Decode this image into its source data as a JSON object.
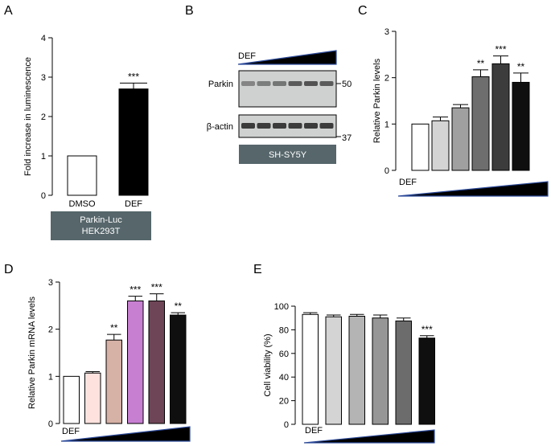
{
  "panels": {
    "A": "A",
    "B": "B",
    "C": "C",
    "D": "D",
    "E": "E"
  },
  "colors": {
    "label_box": "#56666b",
    "ramp_fill": "#000000",
    "ramp_edge": "#2c4a9a",
    "blot_bg": "#cfd0d0",
    "band": "#2a2a2a"
  },
  "blot": {
    "treatment": "DEF",
    "row1_label": "Parkin",
    "row1_marker": "50",
    "row2_label": "β-actin",
    "row2_marker": "37",
    "cell_line": "SH-SY5Y"
  },
  "chart_data": [
    {
      "id": "A",
      "type": "bar",
      "categories": [
        "DMSO",
        "DEF"
      ],
      "values": [
        1.0,
        2.7
      ],
      "errors": [
        0,
        0.15
      ],
      "significance": [
        "",
        "***"
      ],
      "fills": [
        "#ffffff",
        "#000000"
      ],
      "ylabel": "Fold increase in luminescence",
      "ylim": [
        0,
        4
      ],
      "yticks": [
        "0",
        "1",
        "2",
        "3",
        "4"
      ],
      "subtitle_lines": [
        "Parkin-Luc",
        "HEK293T"
      ],
      "grid": false
    },
    {
      "id": "C",
      "type": "bar",
      "categories": [
        "",
        "",
        "",
        "",
        "",
        ""
      ],
      "values": [
        1.0,
        1.07,
        1.35,
        2.02,
        2.3,
        1.9
      ],
      "errors": [
        0,
        0.08,
        0.07,
        0.15,
        0.17,
        0.2
      ],
      "significance": [
        "",
        "",
        "",
        "**",
        "***",
        "**"
      ],
      "fills": [
        "#ffffff",
        "#d4d4d4",
        "#a0a0a0",
        "#6e6e6e",
        "#3c3c3c",
        "#0f0f0f"
      ],
      "ylabel": "Relative Parkin levels",
      "ylim": [
        0,
        3
      ],
      "yticks": [
        "0",
        "1",
        "2",
        "3"
      ],
      "treatment": "DEF",
      "grid": false
    },
    {
      "id": "D",
      "type": "bar",
      "categories": [
        "",
        "",
        "",
        "",
        "",
        ""
      ],
      "values": [
        1.0,
        1.07,
        1.77,
        2.6,
        2.6,
        2.3
      ],
      "errors": [
        0,
        0.03,
        0.12,
        0.1,
        0.15,
        0.05
      ],
      "significance": [
        "",
        "",
        "**",
        "***",
        "***",
        "**"
      ],
      "fills": [
        "#ffffff",
        "#fde2de",
        "#d6b1a6",
        "#c77fd1",
        "#6e4556",
        "#0f0f0f"
      ],
      "ylabel": "Relative Parkin mRNA levels",
      "ylim": [
        0,
        3
      ],
      "yticks": [
        "0",
        "1",
        "2",
        "3"
      ],
      "treatment": "DEF",
      "grid": false
    },
    {
      "id": "E",
      "type": "bar",
      "categories": [
        "",
        "",
        "",
        "",
        "",
        ""
      ],
      "values": [
        93,
        91,
        91.5,
        90,
        87.5,
        73
      ],
      "errors": [
        1.5,
        1.5,
        1.5,
        2.5,
        2.5,
        2
      ],
      "significance": [
        "",
        "",
        "",
        "",
        "",
        "***"
      ],
      "fills": [
        "#ffffff",
        "#d4d4d4",
        "#b4b4b4",
        "#969696",
        "#6c6c6c",
        "#0f0f0f"
      ],
      "ylabel": "Cell viability (%)",
      "ylim": [
        0,
        100
      ],
      "yticks": [
        "0",
        "20",
        "40",
        "60",
        "80",
        "100"
      ],
      "treatment": "DEF",
      "grid": false
    }
  ]
}
